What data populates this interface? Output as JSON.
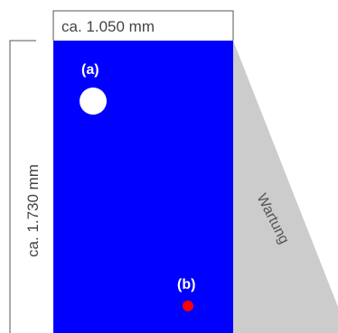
{
  "dimensions": {
    "width_label": "ca. 1.050 mm",
    "height_label": "ca. 1.730 mm"
  },
  "markers": {
    "a_label": "(a)",
    "b_label": "(b)"
  },
  "maintenance": {
    "label": "Wartung"
  },
  "colors": {
    "cabinet": "#0000ff",
    "maintenance_area": "#cccccc",
    "marker_a": "#ffffff",
    "marker_b": "#ff0000",
    "dimension_lines": "#555555"
  }
}
